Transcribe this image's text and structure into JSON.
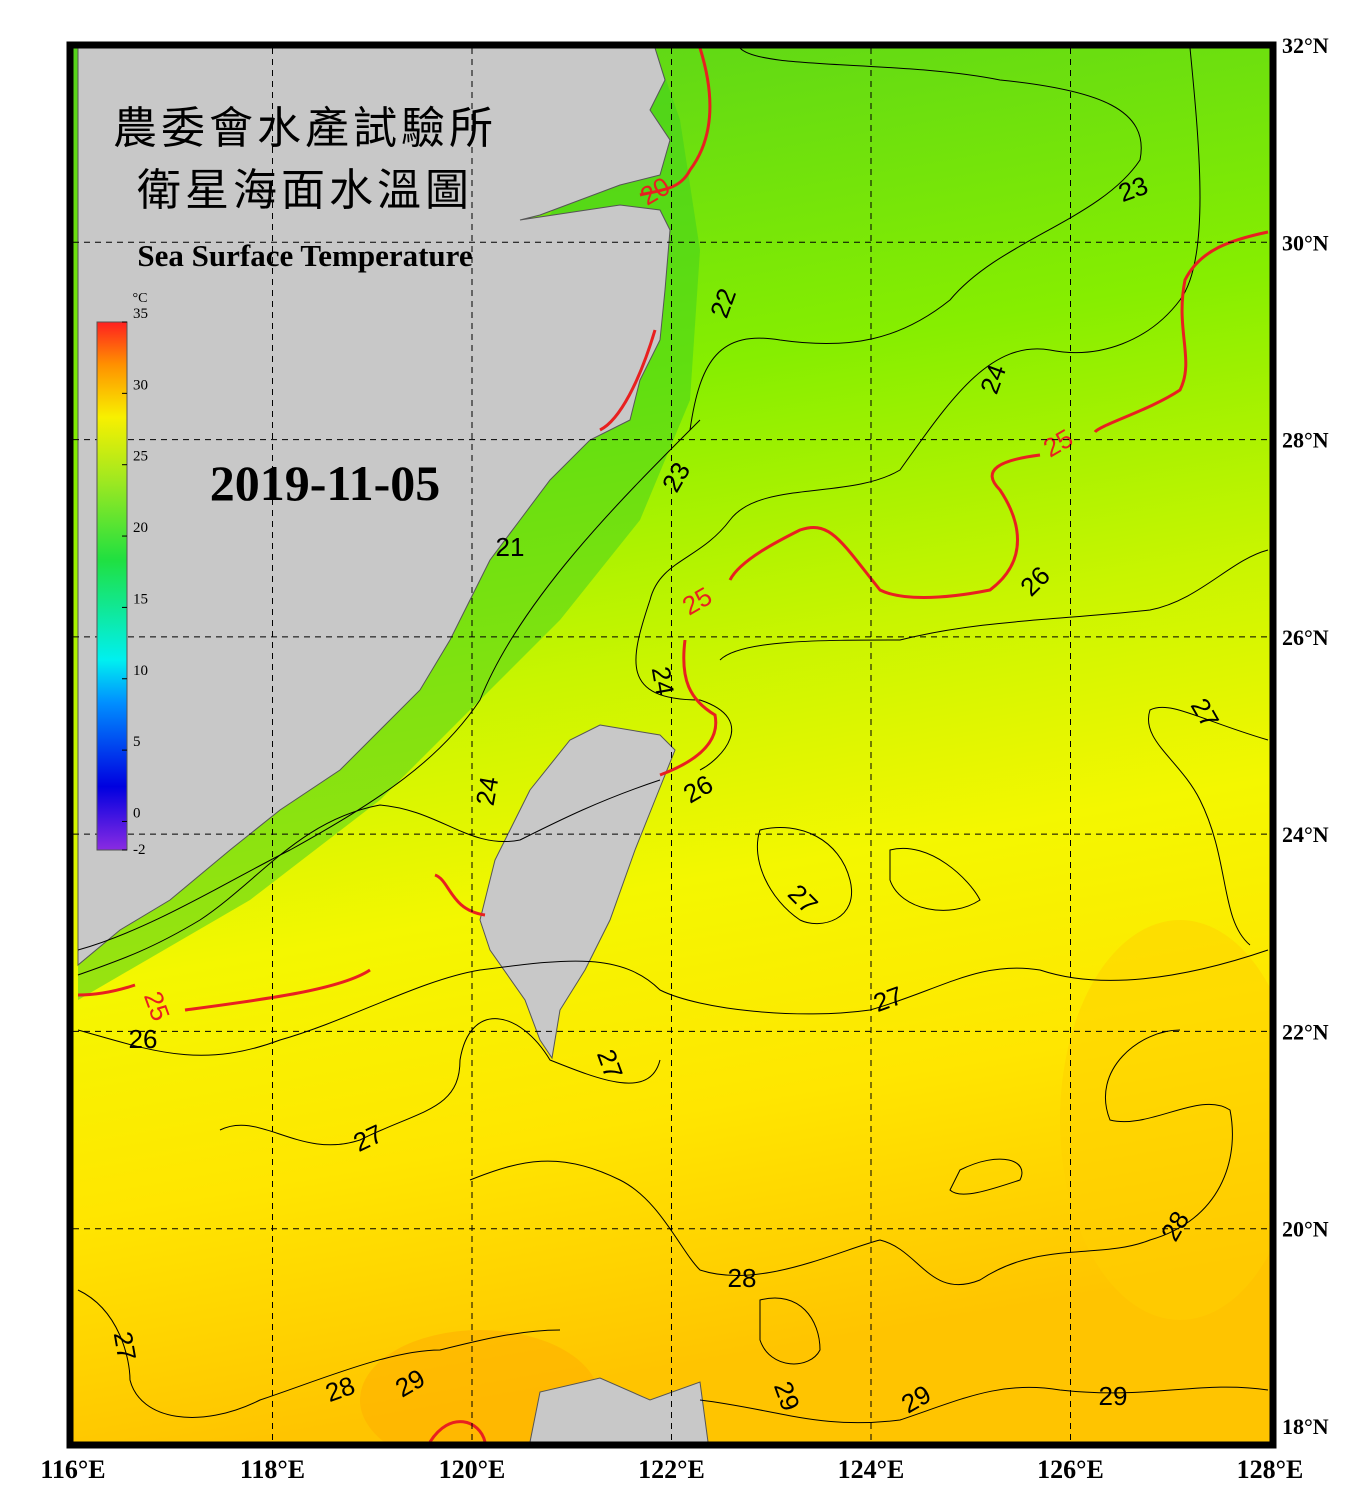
{
  "header": {
    "title_zh_1": "農委會水產試驗所",
    "title_zh_2": "衛星海面水溫圖",
    "title_en": "Sea Surface Temperature",
    "date": "2019-11-05"
  },
  "map": {
    "type": "map",
    "xlim": [
      116,
      128
    ],
    "ylim": [
      18,
      32
    ],
    "xticks": [
      {
        "value": 116,
        "label": "116°E"
      },
      {
        "value": 118,
        "label": "118°E"
      },
      {
        "value": 120,
        "label": "120°E"
      },
      {
        "value": 122,
        "label": "122°E"
      },
      {
        "value": 124,
        "label": "124°E"
      },
      {
        "value": 126,
        "label": "126°E"
      },
      {
        "value": 128,
        "label": "128°E"
      }
    ],
    "yticks": [
      {
        "value": 18,
        "label": "18°N"
      },
      {
        "value": 20,
        "label": "20°N"
      },
      {
        "value": 22,
        "label": "22°N"
      },
      {
        "value": 24,
        "label": "24°N"
      },
      {
        "value": 26,
        "label": "26°N"
      },
      {
        "value": 28,
        "label": "28°N"
      },
      {
        "value": 30,
        "label": "30°N"
      },
      {
        "value": 32,
        "label": "32°N"
      }
    ],
    "grid": true,
    "contour_labels": [
      "20",
      "23",
      "22",
      "24",
      "25",
      "23",
      "21",
      "25",
      "26",
      "24",
      "27",
      "26",
      "24",
      "27",
      "27",
      "25",
      "26",
      "27",
      "27",
      "28",
      "28",
      "27",
      "28",
      "29",
      "29",
      "29",
      "29"
    ]
  },
  "colorbar": {
    "unit": "°C",
    "lim": [
      -2,
      35
    ],
    "ticks": [
      35,
      30,
      25,
      20,
      15,
      10,
      5,
      0,
      -2
    ]
  }
}
